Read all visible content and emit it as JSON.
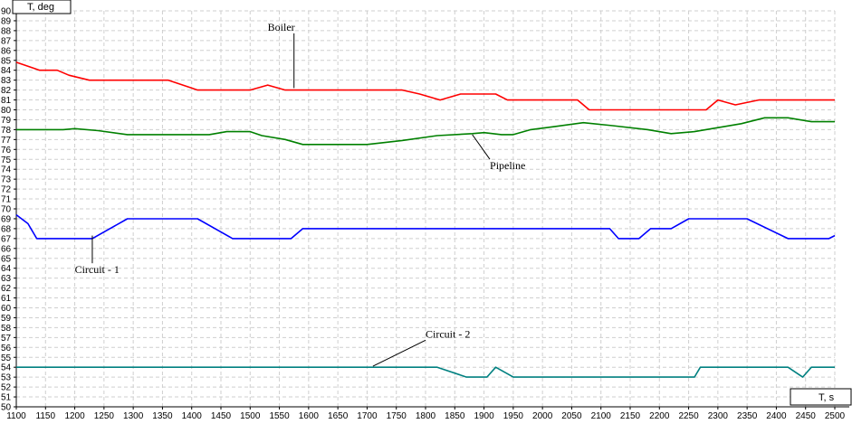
{
  "chart_data": {
    "type": "line",
    "xlabel": "T, s",
    "ylabel": "T, deg",
    "xlim": [
      1100,
      2500
    ],
    "ylim": [
      50,
      90
    ],
    "xticks": [
      1100,
      1150,
      1200,
      1250,
      1300,
      1350,
      1400,
      1450,
      1500,
      1550,
      1600,
      1650,
      1700,
      1750,
      1800,
      1850,
      1900,
      1950,
      2000,
      2050,
      2100,
      2150,
      2200,
      2250,
      2300,
      2350,
      2400,
      2450,
      2500
    ],
    "yticks": [
      50,
      51,
      52,
      53,
      54,
      55,
      56,
      57,
      58,
      59,
      60,
      61,
      62,
      63,
      64,
      65,
      66,
      67,
      68,
      69,
      70,
      71,
      72,
      73,
      74,
      75,
      76,
      77,
      78,
      79,
      80,
      81,
      82,
      83,
      84,
      85,
      86,
      87,
      88,
      89,
      90
    ],
    "grid": true,
    "series": [
      {
        "name": "Boiler",
        "color": "#ff0000",
        "label_at": [
          1530,
          88
        ],
        "leader_to": [
          1575,
          82.2
        ],
        "points": [
          [
            1100,
            84.8
          ],
          [
            1130,
            84.2
          ],
          [
            1140,
            84
          ],
          [
            1170,
            84
          ],
          [
            1190,
            83.5
          ],
          [
            1225,
            83
          ],
          [
            1360,
            83
          ],
          [
            1400,
            82.2
          ],
          [
            1410,
            82
          ],
          [
            1500,
            82
          ],
          [
            1530,
            82.5
          ],
          [
            1560,
            82
          ],
          [
            1760,
            82
          ],
          [
            1790,
            81.6
          ],
          [
            1825,
            81
          ],
          [
            1860,
            81.6
          ],
          [
            1920,
            81.6
          ],
          [
            1940,
            81
          ],
          [
            2060,
            81
          ],
          [
            2080,
            80
          ],
          [
            2280,
            80
          ],
          [
            2300,
            81
          ],
          [
            2330,
            80.5
          ],
          [
            2370,
            81
          ],
          [
            2500,
            81
          ]
        ]
      },
      {
        "name": "Pipeline",
        "color": "#008000",
        "label_at": [
          1910,
          74
        ],
        "leader_to": [
          1880,
          77.5
        ],
        "points": [
          [
            1100,
            78
          ],
          [
            1180,
            78
          ],
          [
            1200,
            78.1
          ],
          [
            1240,
            77.9
          ],
          [
            1290,
            77.5
          ],
          [
            1430,
            77.5
          ],
          [
            1460,
            77.8
          ],
          [
            1500,
            77.8
          ],
          [
            1520,
            77.4
          ],
          [
            1560,
            77
          ],
          [
            1590,
            76.5
          ],
          [
            1700,
            76.5
          ],
          [
            1760,
            76.9
          ],
          [
            1820,
            77.4
          ],
          [
            1880,
            77.6
          ],
          [
            1900,
            77.7
          ],
          [
            1930,
            77.5
          ],
          [
            1950,
            77.5
          ],
          [
            1980,
            78
          ],
          [
            2020,
            78.3
          ],
          [
            2070,
            78.7
          ],
          [
            2120,
            78.4
          ],
          [
            2180,
            78
          ],
          [
            2220,
            77.6
          ],
          [
            2260,
            77.8
          ],
          [
            2300,
            78.2
          ],
          [
            2340,
            78.6
          ],
          [
            2380,
            79.2
          ],
          [
            2420,
            79.2
          ],
          [
            2460,
            78.8
          ],
          [
            2500,
            78.8
          ]
        ]
      },
      {
        "name": "Circuit - 1",
        "color": "#0000ff",
        "label_at": [
          1200,
          63.5
        ],
        "leader_to": [
          1230,
          67.3
        ],
        "points": [
          [
            1100,
            69.4
          ],
          [
            1120,
            68.5
          ],
          [
            1135,
            67
          ],
          [
            1230,
            67
          ],
          [
            1290,
            69
          ],
          [
            1410,
            69
          ],
          [
            1470,
            67
          ],
          [
            1570,
            67
          ],
          [
            1590,
            68
          ],
          [
            2115,
            68
          ],
          [
            2130,
            67
          ],
          [
            2165,
            67
          ],
          [
            2185,
            68
          ],
          [
            2220,
            68
          ],
          [
            2250,
            69
          ],
          [
            2350,
            69
          ],
          [
            2420,
            67
          ],
          [
            2490,
            67
          ],
          [
            2500,
            67.3
          ]
        ]
      },
      {
        "name": "Circuit - 2",
        "color": "#008080",
        "label_at": [
          1800,
          57
        ],
        "leader_to": [
          1710,
          54.1
        ],
        "points": [
          [
            1100,
            54
          ],
          [
            1820,
            54
          ],
          [
            1870,
            53
          ],
          [
            1905,
            53
          ],
          [
            1920,
            54
          ],
          [
            1950,
            53
          ],
          [
            2260,
            53
          ],
          [
            2270,
            54
          ],
          [
            2420,
            54
          ],
          [
            2445,
            53
          ],
          [
            2460,
            54
          ],
          [
            2500,
            54
          ]
        ]
      }
    ]
  }
}
